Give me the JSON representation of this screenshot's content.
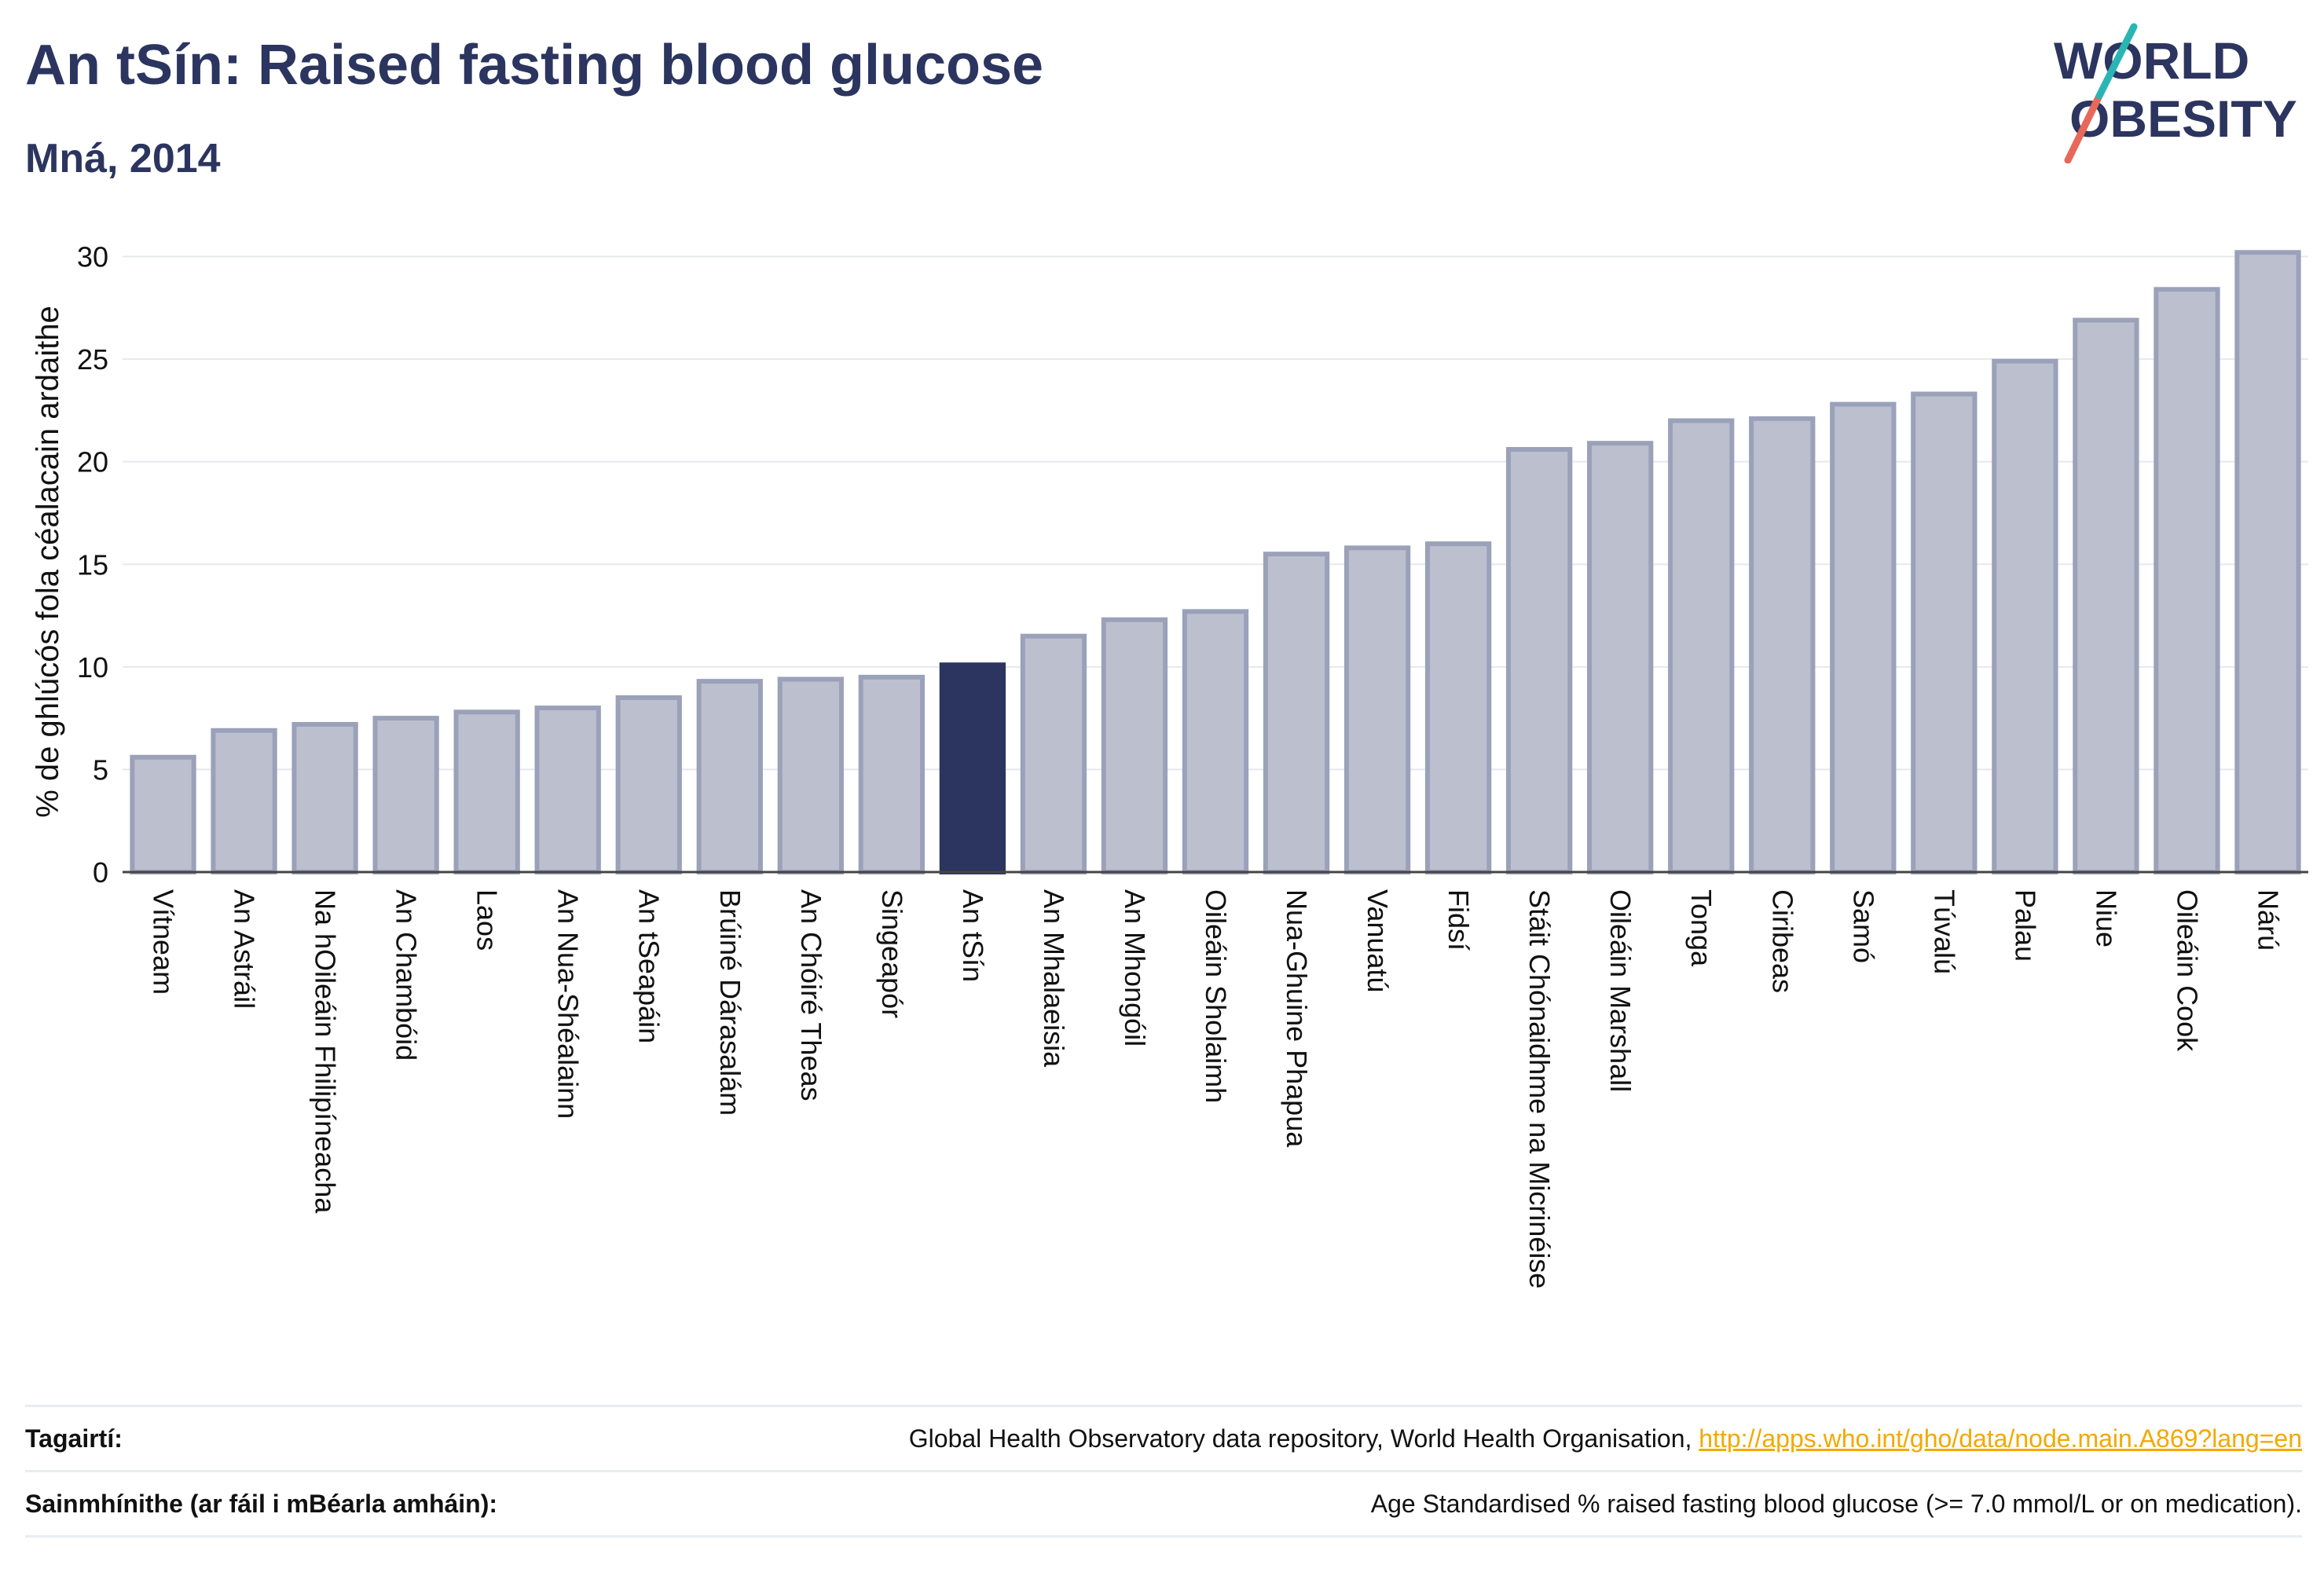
{
  "title": "An tSín: Raised fasting blood glucose",
  "subtitle": "Mná, 2014",
  "logo": {
    "line1": "WORLD",
    "line2": "OBESITY"
  },
  "colors": {
    "bar_fill": "#bcc0ce",
    "bar_stroke": "#9aa1b9",
    "highlight": "#2b355f",
    "grid": "#e6e8ef",
    "logo_text": "#2b355f",
    "logo_teal": "#2ab5b5",
    "logo_coral": "#e8685a",
    "link": "#f2a900"
  },
  "chart_data": {
    "type": "bar",
    "ylabel": "% de ghlúcós fola céalacain ardaithe",
    "ylim": [
      0,
      30
    ],
    "yticks": [
      0,
      5,
      10,
      15,
      20,
      25,
      30
    ],
    "highlight": "An tSín",
    "categories": [
      "Vítneam",
      "An Astráil",
      "Na hOileáin Fhilipíneacha",
      "An Chambóid",
      "Laos",
      "An Nua-Shéalainn",
      "An tSeapáin",
      "Brúiné Dárasalám",
      "An Chóiré Theas",
      "Singeapór",
      "An tSín",
      "An Mhalaeisia",
      "An Mhongóil",
      "Oileáin Sholaimh",
      "Nua-Ghuine Phapua",
      "Vanuatú",
      "Fidsí",
      "Stáit Chónaidhme na Micrinéise",
      "Oileáin Marshall",
      "Tonga",
      "Ciribeas",
      "Samó",
      "Túvalú",
      "Palau",
      "Niue",
      "Oileáin Cook",
      "Nárú"
    ],
    "values": [
      5.6,
      6.9,
      7.2,
      7.5,
      7.8,
      8.0,
      8.5,
      9.3,
      9.4,
      9.5,
      10.1,
      11.5,
      12.3,
      12.7,
      15.5,
      15.8,
      16.0,
      20.6,
      20.9,
      22.0,
      22.1,
      22.8,
      23.3,
      24.9,
      26.9,
      28.4,
      30.2
    ]
  },
  "footer": {
    "ref_label": "Tagairtí:",
    "ref_text": "Global Health Observatory data repository, World Health Organisation, ",
    "ref_link": "http://apps.who.int/gho/data/node.main.A869?lang=en",
    "def_label": "Sainmhínithe (ar fáil i mBéarla amháin):",
    "def_text": "Age Standardised % raised fasting blood glucose (>= 7.0 mmol/L or on medication)."
  }
}
